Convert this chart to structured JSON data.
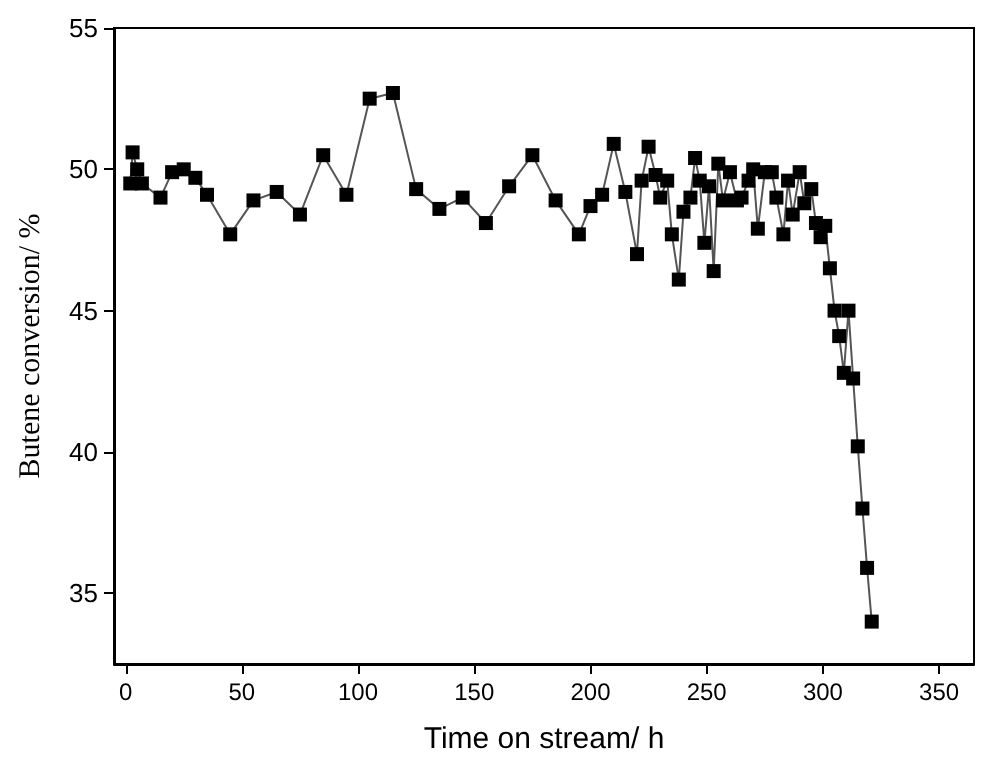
{
  "chart_data": {
    "type": "line",
    "xlabel": "Time on stream/ h",
    "ylabel": "Butene conversion/ %",
    "marker": "square",
    "grid": false,
    "xlim": [
      -5,
      365
    ],
    "xticks": [
      0,
      50,
      100,
      150,
      200,
      250,
      300,
      350
    ],
    "ylim": [
      32.5,
      55
    ],
    "yticks": [
      35,
      40,
      45,
      50,
      55
    ],
    "x": [
      2,
      3,
      5,
      7,
      15,
      20,
      25,
      30,
      35,
      45,
      55,
      65,
      75,
      85,
      95,
      105,
      115,
      125,
      135,
      145,
      155,
      165,
      175,
      185,
      195,
      200,
      205,
      210,
      215,
      220,
      222,
      225,
      228,
      230,
      233,
      235,
      238,
      240,
      243,
      245,
      247,
      249,
      251,
      253,
      255,
      257,
      260,
      263,
      265,
      268,
      270,
      272,
      275,
      278,
      280,
      283,
      285,
      287,
      290,
      292,
      295,
      297,
      299,
      301,
      303,
      305,
      307,
      309,
      311,
      313,
      315,
      317,
      319,
      321
    ],
    "series": [
      {
        "color": "#000000",
        "values": [
          49.5,
          50.6,
          50.0,
          49.5,
          49.0,
          49.9,
          50.0,
          49.7,
          49.1,
          47.7,
          48.9,
          49.2,
          48.4,
          50.5,
          49.1,
          52.5,
          52.7,
          49.3,
          48.6,
          49.0,
          48.1,
          49.4,
          50.5,
          48.9,
          47.7,
          48.7,
          49.1,
          50.9,
          49.2,
          47.0,
          49.6,
          50.8,
          49.8,
          49.0,
          49.6,
          47.7,
          46.1,
          48.5,
          49.0,
          50.4,
          49.6,
          47.4,
          49.4,
          46.4,
          50.2,
          48.9,
          49.9,
          48.9,
          49.0,
          49.6,
          50.0,
          47.9,
          49.9,
          49.9,
          49.0,
          47.7,
          49.6,
          48.4,
          49.9,
          48.8,
          49.3,
          48.1,
          47.6,
          48.0,
          46.5,
          45.0,
          44.1,
          42.8,
          45.0,
          42.6,
          40.2,
          38.0,
          35.9,
          34.0
        ]
      }
    ]
  }
}
